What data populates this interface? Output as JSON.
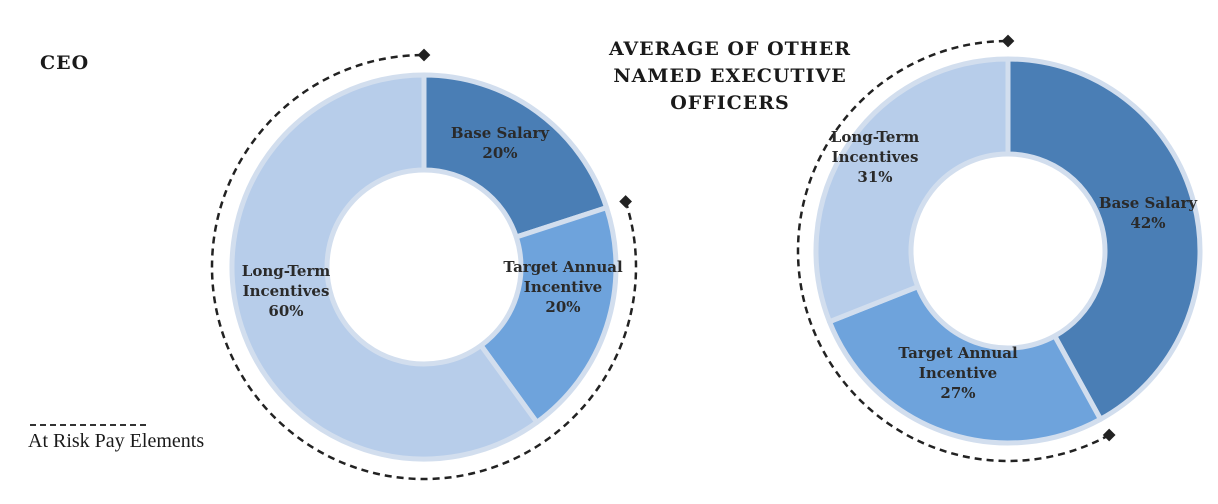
{
  "legend": {
    "label": "At Risk Pay Elements"
  },
  "colors": {
    "base_salary": "#4a7eb5",
    "target_annual_incentive": "#6ea3dc",
    "long_term_incentives": "#b7cdea",
    "separator": "#d2deee",
    "arc": "#222222"
  },
  "chart_data": [
    {
      "type": "pie",
      "variant": "donut",
      "title": "CEO",
      "categories": [
        "Base Salary",
        "Target Annual Incentive",
        "Long-Term Incentives"
      ],
      "values": [
        20,
        20,
        60
      ],
      "labels": [
        [
          "Base Salary",
          "20%"
        ],
        [
          "Target Annual",
          "Incentive",
          "20%"
        ],
        [
          "Long-Term",
          "Incentives",
          "60%"
        ]
      ],
      "at_risk": [
        "Target Annual Incentive",
        "Long-Term Incentives"
      ]
    },
    {
      "type": "pie",
      "variant": "donut",
      "title": "AVERAGE OF OTHER NAMED EXECUTIVE OFFICERS",
      "title_lines": [
        "AVERAGE OF OTHER",
        "NAMED EXECUTIVE",
        "OFFICERS"
      ],
      "categories": [
        "Base Salary",
        "Target Annual Incentive",
        "Long-Term Incentives"
      ],
      "values": [
        42,
        27,
        31
      ],
      "labels": [
        [
          "Base Salary",
          "42%"
        ],
        [
          "Target Annual",
          "Incentive",
          "27%"
        ],
        [
          "Long-Term",
          "Incentives",
          "31%"
        ]
      ],
      "at_risk": [
        "Target Annual Incentive",
        "Long-Term Incentives"
      ]
    }
  ]
}
